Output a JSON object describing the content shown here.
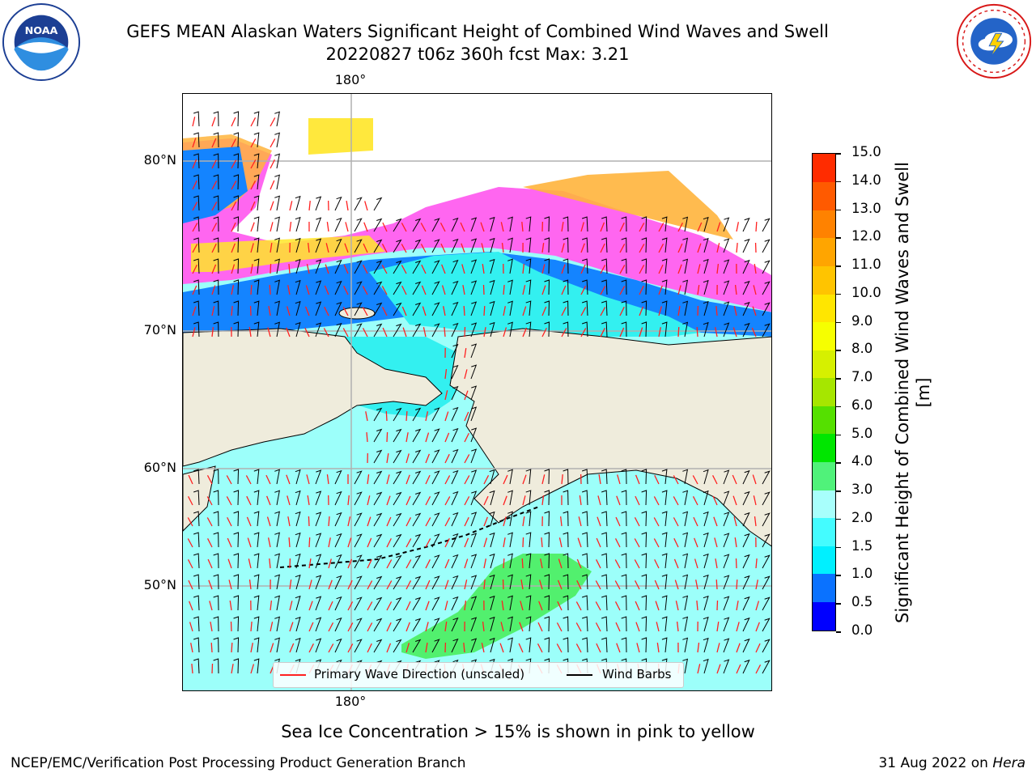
{
  "header": {
    "title": "GEFS MEAN Alaskan Waters Significant Height of Combined Wind Waves and Swell",
    "subtitle_line": "20220827 t06z 360h fcst   Max: 3.21"
  },
  "logos": {
    "left": {
      "name": "NOAA",
      "ring_text": "NATIONAL OCEANIC AND ATMOSPHERIC ADMINISTRATION · U.S. DEPARTMENT OF COMMERCE"
    },
    "right": {
      "ring_text": "NATIONAL WEATHER SERVICE"
    }
  },
  "map": {
    "lon_label_top": "180°",
    "lon_label_bottom": "180°",
    "lat_labels": [
      "80°N",
      "70°N",
      "60°N",
      "50°N"
    ],
    "legend": {
      "wave_label": "Primary Wave Direction (unscaled)",
      "wind_label": "Wind Barbs",
      "wave_color": "#ff2020",
      "wind_color": "#000000"
    },
    "colors": {
      "land": "#efecdc",
      "ocean_low": "#9cfffa",
      "ocean_mid": "#33f0f0",
      "blue": "#1484ff",
      "max_green": "#52f06e",
      "ice_pink": "#ff66f0",
      "ice_orange": "#ffb43c",
      "ice_yellow": "#ffe628"
    }
  },
  "colorbar": {
    "label": "Significant Height of Combined Wind Waves and Swell [m]",
    "ticks": [
      "0.0",
      "0.5",
      "1.0",
      "1.5",
      "2.0",
      "3.0",
      "4.0",
      "5.0",
      "6.0",
      "7.0",
      "8.0",
      "9.0",
      "10.0",
      "11.0",
      "12.0",
      "13.0",
      "14.0",
      "15.0"
    ],
    "colors": [
      "#0000ff",
      "#0a72ff",
      "#00f0ff",
      "#44fcff",
      "#a8fffc",
      "#50f27a",
      "#00e600",
      "#55e000",
      "#a6e600",
      "#d6f000",
      "#f6ff00",
      "#ffe600",
      "#ffc400",
      "#ffa500",
      "#ff8200",
      "#ff5a00",
      "#ff2c00"
    ]
  },
  "caption": "Sea Ice Concentration > 15% is shown in pink to yellow",
  "footer": {
    "left": "NCEP/EMC/Verification Post Processing Product Generation Branch",
    "right_prefix": "31 Aug 2022 on ",
    "right_host": "Hera"
  }
}
